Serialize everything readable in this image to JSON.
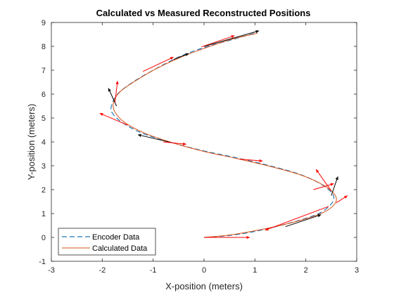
{
  "chart_data": {
    "type": "line",
    "title": "Calculated vs Measured Reconstructed Positions",
    "xlabel": "X-position (meters)",
    "ylabel": "Y-position (meters)",
    "xlim": [
      -3,
      3
    ],
    "ylim": [
      -1,
      9
    ],
    "xticks": [
      -3,
      -2,
      -1,
      0,
      1,
      2,
      3
    ],
    "yticks": [
      -1,
      0,
      1,
      2,
      3,
      4,
      5,
      6,
      7,
      8,
      9
    ],
    "grid": false,
    "legend_position": "bottom-left",
    "series": [
      {
        "name": "Encoder Data",
        "style": "dashed",
        "color": "#1f77b4",
        "points": [
          [
            0,
            0
          ],
          [
            0.5,
            0.08
          ],
          [
            1.0,
            0.25
          ],
          [
            1.5,
            0.5
          ],
          [
            2.0,
            0.8
          ],
          [
            2.3,
            1.05
          ],
          [
            2.5,
            1.4
          ],
          [
            2.55,
            1.7
          ],
          [
            2.45,
            2.0
          ],
          [
            2.2,
            2.35
          ],
          [
            1.8,
            2.7
          ],
          [
            1.2,
            3.05
          ],
          [
            0.6,
            3.35
          ],
          [
            0,
            3.62
          ],
          [
            -0.6,
            3.95
          ],
          [
            -1.2,
            4.35
          ],
          [
            -1.6,
            4.8
          ],
          [
            -1.8,
            5.2
          ],
          [
            -1.82,
            5.5
          ],
          [
            -1.7,
            6.0
          ],
          [
            -1.4,
            6.5
          ],
          [
            -1.0,
            7.0
          ],
          [
            -0.5,
            7.55
          ],
          [
            0.0,
            7.95
          ],
          [
            0.5,
            8.25
          ],
          [
            1.0,
            8.55
          ]
        ]
      },
      {
        "name": "Calculated Data",
        "style": "solid",
        "color": "#d95319",
        "points": [
          [
            0,
            0
          ],
          [
            0.5,
            0.1
          ],
          [
            1.0,
            0.28
          ],
          [
            1.5,
            0.5
          ],
          [
            2.0,
            0.78
          ],
          [
            2.35,
            1.05
          ],
          [
            2.55,
            1.35
          ],
          [
            2.6,
            1.65
          ],
          [
            2.5,
            1.95
          ],
          [
            2.25,
            2.3
          ],
          [
            1.85,
            2.65
          ],
          [
            1.25,
            3.0
          ],
          [
            0.65,
            3.3
          ],
          [
            0,
            3.6
          ],
          [
            -0.6,
            3.95
          ],
          [
            -1.15,
            4.35
          ],
          [
            -1.55,
            4.8
          ],
          [
            -1.75,
            5.25
          ],
          [
            -1.78,
            5.65
          ],
          [
            -1.65,
            6.1
          ],
          [
            -1.35,
            6.55
          ],
          [
            -0.95,
            7.05
          ],
          [
            -0.45,
            7.55
          ],
          [
            0.05,
            7.95
          ],
          [
            0.55,
            8.3
          ],
          [
            1.05,
            8.55
          ]
        ]
      }
    ],
    "heading_arrows": [
      {
        "color": "#000000",
        "from": [
          0.0,
          8.0
        ],
        "to": [
          1.08,
          8.65
        ]
      },
      {
        "color": "#ff0000",
        "from": [
          -0.05,
          7.98
        ],
        "to": [
          0.6,
          8.45
        ]
      },
      {
        "color": "#000000",
        "from": [
          -0.6,
          7.45
        ],
        "to": [
          -0.3,
          7.7
        ]
      },
      {
        "color": "#ff0000",
        "from": [
          -1.2,
          6.95
        ],
        "to": [
          -0.6,
          7.55
        ]
      },
      {
        "color": "#000000",
        "from": [
          -1.72,
          5.5
        ],
        "to": [
          -1.88,
          6.25
        ]
      },
      {
        "color": "#ff0000",
        "from": [
          -1.75,
          5.65
        ],
        "to": [
          -1.7,
          6.55
        ]
      },
      {
        "color": "#ff0000",
        "from": [
          -1.5,
          4.7
        ],
        "to": [
          -2.05,
          5.2
        ]
      },
      {
        "color": "#000000",
        "from": [
          -0.6,
          3.95
        ],
        "to": [
          -1.3,
          4.3
        ]
      },
      {
        "color": "#ff0000",
        "from": [
          -0.8,
          4.0
        ],
        "to": [
          -0.35,
          3.9
        ]
      },
      {
        "color": "#ff0000",
        "from": [
          0.7,
          3.28
        ],
        "to": [
          1.15,
          3.2
        ]
      },
      {
        "color": "#ff0000",
        "from": [
          2.15,
          2.0
        ],
        "to": [
          2.55,
          2.25
        ]
      },
      {
        "color": "#ff0000",
        "from": [
          2.5,
          1.95
        ],
        "to": [
          2.2,
          2.85
        ]
      },
      {
        "color": "#000000",
        "from": [
          2.5,
          1.75
        ],
        "to": [
          2.63,
          2.55
        ]
      },
      {
        "color": "#ff0000",
        "from": [
          2.6,
          1.45
        ],
        "to": [
          2.82,
          1.75
        ]
      },
      {
        "color": "#ff0000",
        "from": [
          2.45,
          1.3
        ],
        "to": [
          1.2,
          0.3
        ]
      },
      {
        "color": "#000000",
        "from": [
          1.6,
          0.45
        ],
        "to": [
          2.3,
          0.95
        ]
      },
      {
        "color": "#ff0000",
        "from": [
          0.0,
          0.0
        ],
        "to": [
          0.9,
          0.0
        ]
      }
    ]
  }
}
